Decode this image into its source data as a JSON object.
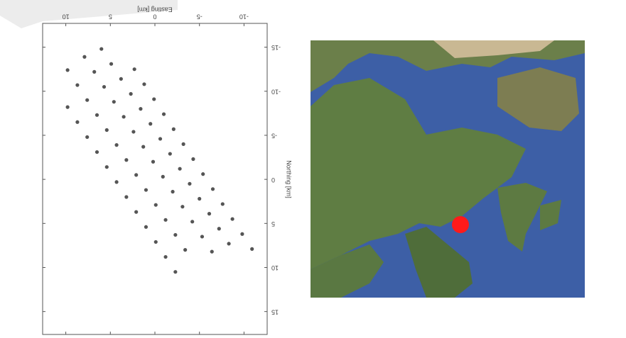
{
  "chart_data": {
    "type": "scatter",
    "x_label": "Easting [km]",
    "y_label": "Northing [km]",
    "x": [
      9.8,
      8.7,
      7.6,
      6.5,
      5.4,
      4.3,
      3.2,
      2.1,
      1.0,
      -0.1,
      -1.2,
      -2.3,
      9.8,
      8.7,
      7.6,
      6.5,
      5.4,
      4.3,
      3.2,
      2.1,
      1.0,
      -0.1,
      -1.2,
      -2.3,
      -3.4,
      7.9,
      6.8,
      5.7,
      4.6,
      3.5,
      2.4,
      1.3,
      0.2,
      -0.9,
      -2.0,
      -3.1,
      -4.2,
      -5.3,
      -6.4,
      6.0,
      4.9,
      3.8,
      2.7,
      1.6,
      0.5,
      -0.6,
      -1.7,
      -2.8,
      -3.9,
      -5.0,
      -6.1,
      -7.2,
      -8.3,
      2.3,
      1.2,
      0.1,
      -1.0,
      -2.1,
      -3.2,
      -4.3,
      -5.4,
      -6.5,
      -7.6,
      -8.7,
      -9.8,
      -10.9
    ],
    "values": [
      -8.2,
      -6.5,
      -4.8,
      -3.1,
      -1.4,
      0.3,
      2.0,
      3.7,
      5.4,
      7.1,
      8.8,
      10.5,
      -12.4,
      -10.7,
      -9.0,
      -7.3,
      -5.6,
      -3.9,
      -2.2,
      -0.5,
      1.2,
      2.9,
      4.6,
      6.3,
      8.0,
      -13.9,
      -12.2,
      -10.5,
      -8.8,
      -7.1,
      -5.4,
      -3.7,
      -2.0,
      -0.3,
      1.4,
      3.1,
      4.8,
      6.5,
      8.2,
      -14.8,
      -13.1,
      -11.4,
      -9.7,
      -8.0,
      -6.3,
      -4.6,
      -2.9,
      -1.2,
      0.5,
      2.2,
      3.9,
      5.6,
      7.3,
      -12.5,
      -10.8,
      -9.1,
      -7.4,
      -5.7,
      -4.0,
      -2.3,
      -0.6,
      1.1,
      2.8,
      4.5,
      6.2,
      7.9
    ],
    "color": "#555555",
    "xlim": [
      -12.6,
      12.6
    ],
    "xticks": [
      -10,
      -5,
      0,
      5,
      10
    ],
    "ylim": [
      -17.7,
      17.6
    ],
    "yticks": [
      -15,
      -10,
      -5,
      0,
      5,
      10,
      15
    ]
  }
}
